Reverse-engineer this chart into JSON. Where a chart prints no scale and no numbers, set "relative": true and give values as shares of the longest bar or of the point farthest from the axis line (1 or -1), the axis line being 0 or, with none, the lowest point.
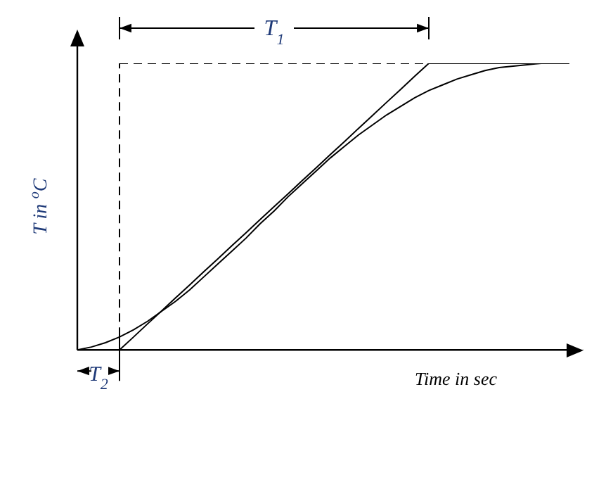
{
  "chart_data": {
    "type": "line",
    "relative": true,
    "xlabel": "Time in sec",
    "ylabel": "T in $^{o}$C",
    "annotations": [
      "T$_{1}$",
      "T$_{2}$"
    ],
    "categories": [
      null,
      null,
      null,
      null,
      null,
      null,
      null,
      null,
      null,
      null,
      null,
      null,
      null,
      null,
      null,
      null,
      null,
      null,
      null,
      null,
      null,
      null,
      null,
      null,
      null,
      null,
      null,
      null,
      null,
      null,
      null,
      null,
      null,
      null,
      null,
      null,
      null
    ],
    "series": [
      {
        "color": "#000000",
        "values": [
          0,
          0.01,
          0.025,
          0.045,
          0.07,
          0.1,
          0.135,
          0.17,
          0.21,
          0.255,
          0.3,
          0.345,
          0.39,
          0.44,
          0.485,
          0.535,
          0.58,
          0.625,
          0.67,
          0.71,
          0.75,
          0.785,
          0.82,
          0.85,
          0.88,
          0.905,
          0.925,
          0.945,
          0.96,
          0.975,
          0.985,
          0.99,
          0.995,
          1,
          1,
          1,
          null
        ]
      },
      {
        "color": "#000000",
        "values": [
          null,
          null,
          null,
          0,
          0.045,
          0.091,
          0.136,
          0.182,
          0.227,
          0.273,
          0.318,
          0.364,
          0.409,
          0.455,
          0.5,
          0.545,
          0.591,
          0.636,
          0.682,
          0.727,
          0.773,
          0.818,
          0.864,
          0.909,
          0.955,
          1,
          1,
          1,
          1,
          1,
          1,
          1,
          1,
          1,
          1,
          1,
          null
        ]
      },
      {
        "color": "#000000",
        "line_style": "dashed",
        "values": [
          null,
          null,
          null,
          1,
          1,
          1,
          1,
          1,
          1,
          1,
          1,
          1,
          1,
          1,
          1,
          1,
          1,
          1,
          1,
          1,
          1,
          1,
          1,
          1,
          1,
          1,
          null,
          null,
          null,
          null,
          null,
          null,
          null,
          null,
          null,
          null,
          null
        ]
      }
    ]
  }
}
